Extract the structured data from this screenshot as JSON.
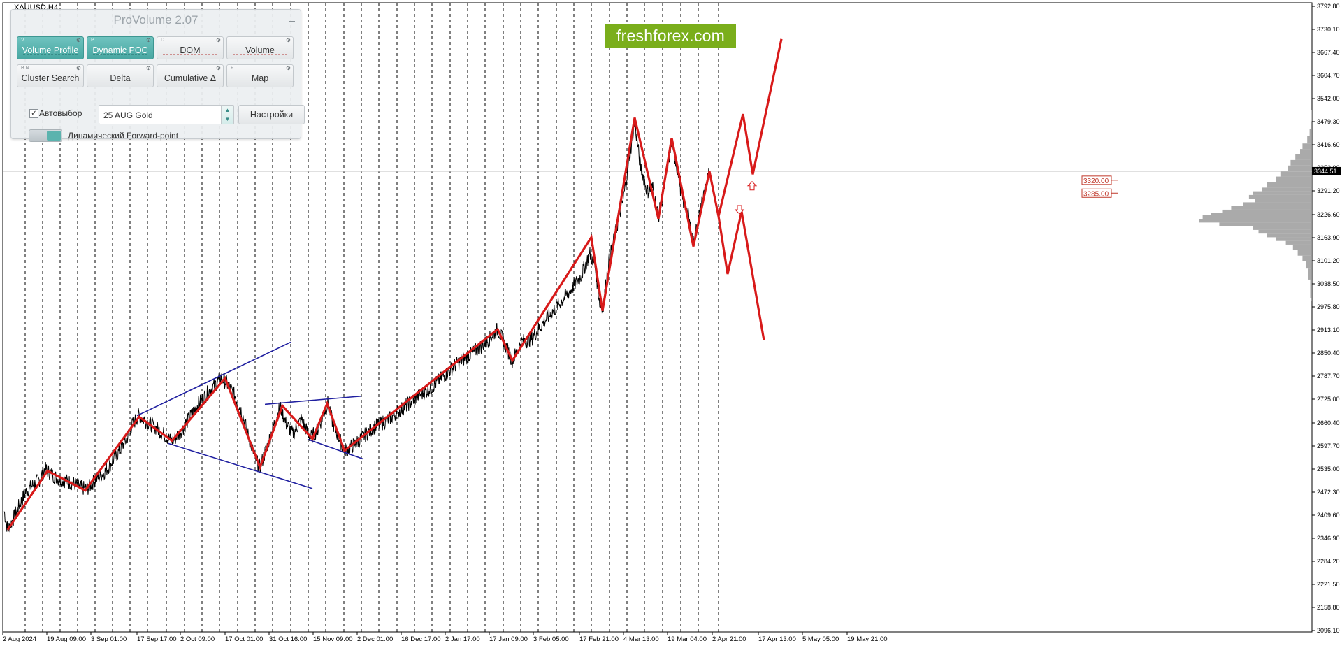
{
  "symbol": "XAUUSD,H4",
  "watermark": "freshforex.com",
  "panel": {
    "title": "ProVolume 2.07",
    "buttons": [
      {
        "label": "Volume Profile",
        "hotkey": "V",
        "active": true
      },
      {
        "label": "Dynamic POC",
        "hotkey": "P",
        "active": true
      },
      {
        "label": "DOM",
        "hotkey": "D",
        "active": false
      },
      {
        "label": "Volume",
        "hotkey": "",
        "active": false
      },
      {
        "label": "Cluster Search",
        "hotkey": "B  N",
        "active": false
      },
      {
        "label": "Delta",
        "hotkey": "",
        "active": false
      },
      {
        "label": "Cumulative Δ",
        "hotkey": "",
        "active": false
      },
      {
        "label": "Map",
        "hotkey": "F",
        "active": false
      }
    ],
    "autoselect_label": "Автовыбор",
    "autoselect_checked": true,
    "instrument": "25 AUG Gold",
    "settings_label": "Настройки",
    "forward_point_label": "Динамический Forward-point",
    "accent_color": "#52aca7"
  },
  "chart_data": {
    "type": "line",
    "ylim": [
      2085.0,
      3800.0
    ],
    "y_ticks": [
      "3792.80",
      "3730.10",
      "3667.40",
      "3604.70",
      "3542.00",
      "3479.30",
      "3416.60",
      "3353.90",
      "3291.20",
      "3226.60",
      "3163.90",
      "3101.20",
      "3038.50",
      "2975.80",
      "2913.10",
      "2850.40",
      "2787.70",
      "2725.00",
      "2660.40",
      "2597.70",
      "2535.00",
      "2472.30",
      "2409.60",
      "2346.90",
      "2284.20",
      "2221.50",
      "2158.80",
      "2096.10"
    ],
    "current_price": "3344.51",
    "x_ticks": [
      "2 Aug 2024",
      "19 Aug 09:00",
      "3 Sep 01:00",
      "17 Sep 17:00",
      "2 Oct 09:00",
      "17 Oct 01:00",
      "31 Oct 16:00",
      "15 Nov 09:00",
      "2 Dec 01:00",
      "16 Dec 17:00",
      "2 Jan 17:00",
      "17 Jan 09:00",
      "3 Feb 05:00",
      "17 Feb 21:00",
      "4 Mar 13:00",
      "19 Mar 04:00",
      "2 Apr 21:00",
      "17 Apr 13:00",
      "5 May 05:00",
      "19 May 21:00"
    ],
    "price_path": [
      [
        0,
        2420
      ],
      [
        5,
        2370
      ],
      [
        12,
        2395
      ],
      [
        20,
        2430
      ],
      [
        30,
        2470
      ],
      [
        40,
        2490
      ],
      [
        50,
        2505
      ],
      [
        58,
        2535
      ],
      [
        66,
        2525
      ],
      [
        75,
        2510
      ],
      [
        85,
        2505
      ],
      [
        100,
        2495
      ],
      [
        110,
        2485
      ],
      [
        118,
        2480
      ],
      [
        130,
        2505
      ],
      [
        145,
        2530
      ],
      [
        160,
        2570
      ],
      [
        175,
        2615
      ],
      [
        183,
        2655
      ],
      [
        192,
        2680
      ],
      [
        200,
        2670
      ],
      [
        215,
        2650
      ],
      [
        228,
        2630
      ],
      [
        240,
        2610
      ],
      [
        252,
        2635
      ],
      [
        262,
        2665
      ],
      [
        275,
        2705
      ],
      [
        290,
        2740
      ],
      [
        302,
        2765
      ],
      [
        310,
        2785
      ],
      [
        318,
        2770
      ],
      [
        330,
        2735
      ],
      [
        340,
        2690
      ],
      [
        350,
        2620
      ],
      [
        360,
        2560
      ],
      [
        366,
        2540
      ],
      [
        375,
        2590
      ],
      [
        385,
        2650
      ],
      [
        395,
        2705
      ],
      [
        403,
        2660
      ],
      [
        413,
        2630
      ],
      [
        425,
        2670
      ],
      [
        438,
        2620
      ],
      [
        448,
        2640
      ],
      [
        458,
        2690
      ],
      [
        463,
        2715
      ],
      [
        470,
        2660
      ],
      [
        480,
        2615
      ],
      [
        487,
        2585
      ],
      [
        500,
        2600
      ],
      [
        515,
        2625
      ],
      [
        530,
        2650
      ],
      [
        550,
        2670
      ],
      [
        570,
        2700
      ],
      [
        590,
        2730
      ],
      [
        610,
        2755
      ],
      [
        630,
        2790
      ],
      [
        650,
        2825
      ],
      [
        670,
        2850
      ],
      [
        690,
        2880
      ],
      [
        706,
        2915
      ],
      [
        715,
        2880
      ],
      [
        727,
        2830
      ],
      [
        740,
        2880
      ],
      [
        755,
        2890
      ],
      [
        770,
        2930
      ],
      [
        790,
        2975
      ],
      [
        810,
        3020
      ],
      [
        825,
        3060
      ],
      [
        838,
        3120
      ],
      [
        845,
        3090
      ],
      [
        852,
        2990
      ],
      [
        856,
        2965
      ],
      [
        865,
        3100
      ],
      [
        875,
        3180
      ],
      [
        885,
        3260
      ],
      [
        893,
        3360
      ],
      [
        902,
        3480
      ],
      [
        910,
        3360
      ],
      [
        920,
        3290
      ],
      [
        928,
        3300
      ],
      [
        936,
        3220
      ],
      [
        945,
        3310
      ],
      [
        955,
        3420
      ],
      [
        962,
        3360
      ],
      [
        970,
        3270
      ],
      [
        978,
        3230
      ],
      [
        986,
        3150
      ],
      [
        995,
        3230
      ],
      [
        1003,
        3300
      ],
      [
        1009,
        3340
      ]
    ],
    "red_zigzag": [
      [
        5,
        2370
      ],
      [
        62,
        2530
      ],
      [
        116,
        2477
      ],
      [
        193,
        2677
      ],
      [
        240,
        2612
      ],
      [
        316,
        2782
      ],
      [
        366,
        2540
      ],
      [
        398,
        2707
      ],
      [
        441,
        2617
      ],
      [
        462,
        2713
      ],
      [
        487,
        2585
      ],
      [
        706,
        2915
      ],
      [
        727,
        2830
      ],
      [
        840,
        3165
      ],
      [
        856,
        2965
      ],
      [
        902,
        3490
      ],
      [
        936,
        3215
      ],
      [
        955,
        3435
      ],
      [
        986,
        3140
      ],
      [
        1009,
        3344
      ]
    ],
    "red_forecast_up": [
      [
        1009,
        3344
      ],
      [
        1022,
        3222
      ],
      [
        1057,
        3500
      ],
      [
        1071,
        3336
      ],
      [
        1112,
        3704
      ]
    ],
    "red_forecast_down": [
      [
        1022,
        3222
      ],
      [
        1035,
        3065
      ],
      [
        1055,
        3235
      ],
      [
        1087,
        2885
      ]
    ],
    "blue_channel_1": {
      "upper": [
        [
          190,
          2680
        ],
        [
          410,
          2880
        ]
      ],
      "lower": [
        [
          234,
          2605
        ],
        [
          441,
          2482
        ]
      ]
    },
    "blue_channel_2": {
      "upper": [
        [
          373,
          2711
        ],
        [
          510,
          2733
        ]
      ],
      "lower": [
        [
          434,
          2616
        ],
        [
          514,
          2562
        ]
      ]
    },
    "vertical_markers": [
      30,
      55,
      80,
      105,
      130,
      155,
      180,
      205,
      232,
      258,
      283,
      308,
      334,
      359,
      384,
      410,
      435,
      460,
      486,
      511,
      536,
      562,
      587,
      612,
      638,
      663,
      688,
      714,
      739,
      764,
      790,
      815,
      840,
      866,
      891,
      916,
      942,
      968,
      993,
      1022
    ],
    "levels": [
      {
        "label": "3320.00",
        "price": 3320
      },
      {
        "label": "3285.00",
        "price": 3285
      }
    ],
    "arrows": [
      {
        "x": 1052,
        "price": 3240,
        "dir": "down"
      },
      {
        "x": 1070,
        "price": 3305,
        "dir": "up"
      }
    ],
    "volume_profile": [
      [
        3510,
        0.003
      ],
      [
        3480,
        0.01
      ],
      [
        3460,
        0.02
      ],
      [
        3440,
        0.04
      ],
      [
        3420,
        0.08
      ],
      [
        3405,
        0.1
      ],
      [
        3390,
        0.14
      ],
      [
        3375,
        0.18
      ],
      [
        3360,
        0.2
      ],
      [
        3345,
        0.26
      ],
      [
        3330,
        0.3
      ],
      [
        3315,
        0.38
      ],
      [
        3300,
        0.42
      ],
      [
        3290,
        0.5
      ],
      [
        3280,
        0.53
      ],
      [
        3270,
        0.48
      ],
      [
        3260,
        0.58
      ],
      [
        3250,
        0.68
      ],
      [
        3240,
        0.75
      ],
      [
        3232,
        0.85
      ],
      [
        3225,
        0.92
      ],
      [
        3215,
        0.95
      ],
      [
        3205,
        0.78
      ],
      [
        3195,
        0.5
      ],
      [
        3185,
        0.45
      ],
      [
        3175,
        0.38
      ],
      [
        3165,
        0.3
      ],
      [
        3155,
        0.22
      ],
      [
        3145,
        0.16
      ],
      [
        3130,
        0.12
      ],
      [
        3115,
        0.08
      ],
      [
        3100,
        0.05
      ],
      [
        3080,
        0.03
      ],
      [
        3050,
        0.015
      ],
      [
        3000,
        0.005
      ]
    ]
  }
}
